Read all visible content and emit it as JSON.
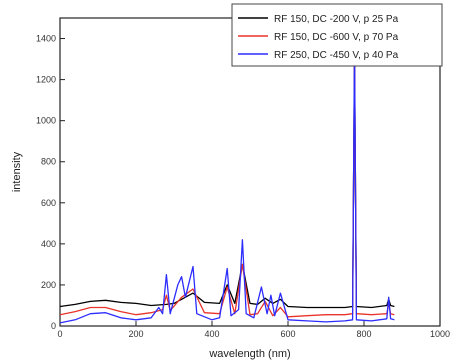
{
  "chart_data": {
    "type": "line",
    "title": "",
    "xlabel": "wavelength (nm)",
    "ylabel": "intensity",
    "xlim": [
      0,
      1000
    ],
    "ylim": [
      0,
      1500
    ],
    "x_ticks": [
      "0",
      "200",
      "400",
      "600",
      "800",
      "1000"
    ],
    "y_ticks": [
      "0",
      "200",
      "400",
      "600",
      "800",
      "1000",
      "1200",
      "1400"
    ],
    "grid": false,
    "legend_position": "top-right",
    "series": [
      {
        "name": "RF 150, DC -200 V, p 25 Pa",
        "color": "#000000",
        "points": [
          [
            0,
            95
          ],
          [
            40,
            105
          ],
          [
            80,
            120
          ],
          [
            120,
            125
          ],
          [
            160,
            115
          ],
          [
            200,
            110
          ],
          [
            240,
            100
          ],
          [
            280,
            105
          ],
          [
            300,
            110
          ],
          [
            320,
            130
          ],
          [
            350,
            160
          ],
          [
            380,
            115
          ],
          [
            420,
            110
          ],
          [
            440,
            200
          ],
          [
            460,
            110
          ],
          [
            480,
            300
          ],
          [
            500,
            110
          ],
          [
            520,
            105
          ],
          [
            540,
            135
          ],
          [
            560,
            110
          ],
          [
            580,
            130
          ],
          [
            600,
            95
          ],
          [
            650,
            90
          ],
          [
            700,
            90
          ],
          [
            750,
            90
          ],
          [
            770,
            95
          ],
          [
            775,
            1300
          ],
          [
            780,
            95
          ],
          [
            820,
            90
          ],
          [
            860,
            100
          ],
          [
            865,
            130
          ],
          [
            870,
            100
          ],
          [
            880,
            95
          ]
        ]
      },
      {
        "name": "RF 150, DC -600 V, p 70 Pa",
        "color": "#e8342a",
        "points": [
          [
            0,
            55
          ],
          [
            40,
            70
          ],
          [
            80,
            90
          ],
          [
            120,
            90
          ],
          [
            160,
            70
          ],
          [
            200,
            55
          ],
          [
            240,
            65
          ],
          [
            270,
            80
          ],
          [
            280,
            150
          ],
          [
            290,
            75
          ],
          [
            320,
            140
          ],
          [
            350,
            180
          ],
          [
            380,
            65
          ],
          [
            420,
            60
          ],
          [
            440,
            190
          ],
          [
            460,
            60
          ],
          [
            480,
            300
          ],
          [
            500,
            55
          ],
          [
            520,
            60
          ],
          [
            540,
            120
          ],
          [
            560,
            50
          ],
          [
            580,
            90
          ],
          [
            600,
            45
          ],
          [
            650,
            50
          ],
          [
            700,
            55
          ],
          [
            750,
            55
          ],
          [
            770,
            60
          ],
          [
            775,
            1330
          ],
          [
            780,
            60
          ],
          [
            820,
            55
          ],
          [
            860,
            60
          ],
          [
            865,
            110
          ],
          [
            870,
            60
          ],
          [
            880,
            55
          ]
        ]
      },
      {
        "name": "RF 250, DC -450 V, p 40 Pa",
        "color": "#2c2cff",
        "points": [
          [
            0,
            15
          ],
          [
            40,
            30
          ],
          [
            80,
            60
          ],
          [
            120,
            65
          ],
          [
            160,
            40
          ],
          [
            200,
            30
          ],
          [
            240,
            40
          ],
          [
            260,
            90
          ],
          [
            270,
            60
          ],
          [
            280,
            250
          ],
          [
            290,
            60
          ],
          [
            310,
            200
          ],
          [
            320,
            240
          ],
          [
            330,
            140
          ],
          [
            350,
            290
          ],
          [
            360,
            60
          ],
          [
            400,
            30
          ],
          [
            420,
            40
          ],
          [
            440,
            280
          ],
          [
            450,
            50
          ],
          [
            470,
            80
          ],
          [
            480,
            420
          ],
          [
            490,
            60
          ],
          [
            510,
            40
          ],
          [
            530,
            190
          ],
          [
            545,
            60
          ],
          [
            555,
            150
          ],
          [
            565,
            50
          ],
          [
            580,
            160
          ],
          [
            600,
            30
          ],
          [
            650,
            25
          ],
          [
            700,
            20
          ],
          [
            750,
            25
          ],
          [
            770,
            30
          ],
          [
            775,
            1365
          ],
          [
            780,
            30
          ],
          [
            820,
            25
          ],
          [
            860,
            35
          ],
          [
            865,
            140
          ],
          [
            870,
            35
          ],
          [
            880,
            30
          ]
        ]
      }
    ]
  }
}
